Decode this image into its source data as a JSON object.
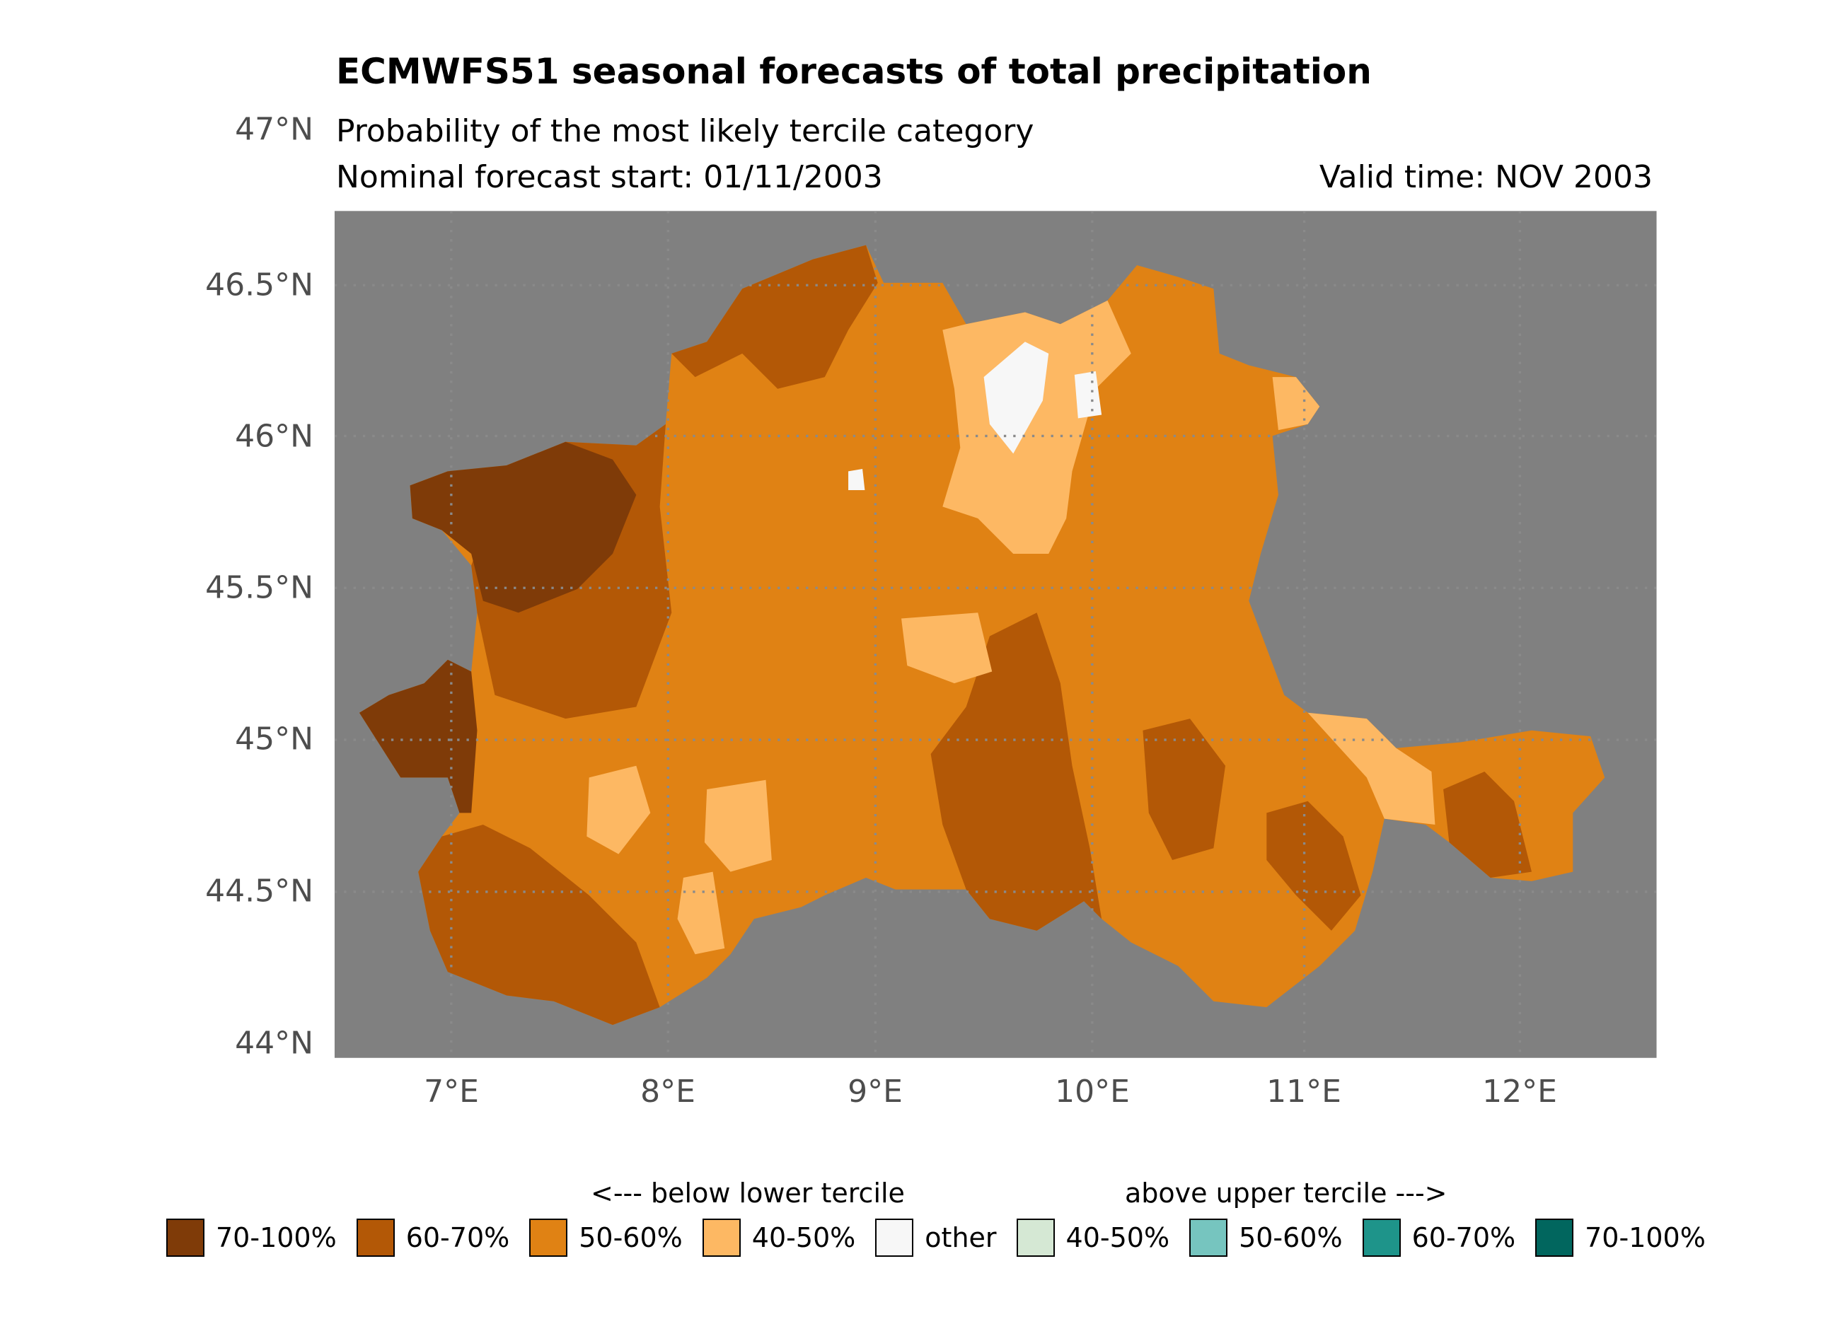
{
  "title": "ECMWFS51 seasonal forecasts of total precipitation",
  "subtitle": "Probability of the most likely tercile category",
  "forecast_start": "Nominal forecast start: 01/11/2003",
  "valid_time": "Valid time: NOV 2003",
  "axes": {
    "lat_ticks": [
      "47°N",
      "46.5°N",
      "46°N",
      "45.5°N",
      "45°N",
      "44.5°N",
      "44°N"
    ],
    "lon_ticks": [
      "7°E",
      "8°E",
      "9°E",
      "10°E",
      "11°E",
      "12°E"
    ]
  },
  "legend": {
    "below_header": "<--- below lower tercile",
    "above_header": "above upper tercile --->",
    "items": [
      {
        "label": "70-100%",
        "color": "#7f3b08"
      },
      {
        "label": "60-70%",
        "color": "#b35806"
      },
      {
        "label": "50-60%",
        "color": "#e08214"
      },
      {
        "label": "40-50%",
        "color": "#fdb863"
      },
      {
        "label": "other",
        "color": "#f7f7f7"
      },
      {
        "label": "40-50%",
        "color": "#d5e8d4"
      },
      {
        "label": "50-60%",
        "color": "#76c5bf"
      },
      {
        "label": "60-70%",
        "color": "#1e948a"
      },
      {
        "label": "70-100%",
        "color": "#01665e"
      }
    ]
  },
  "colors": {
    "background": "#808080",
    "grid": "#8a8a8a"
  }
}
